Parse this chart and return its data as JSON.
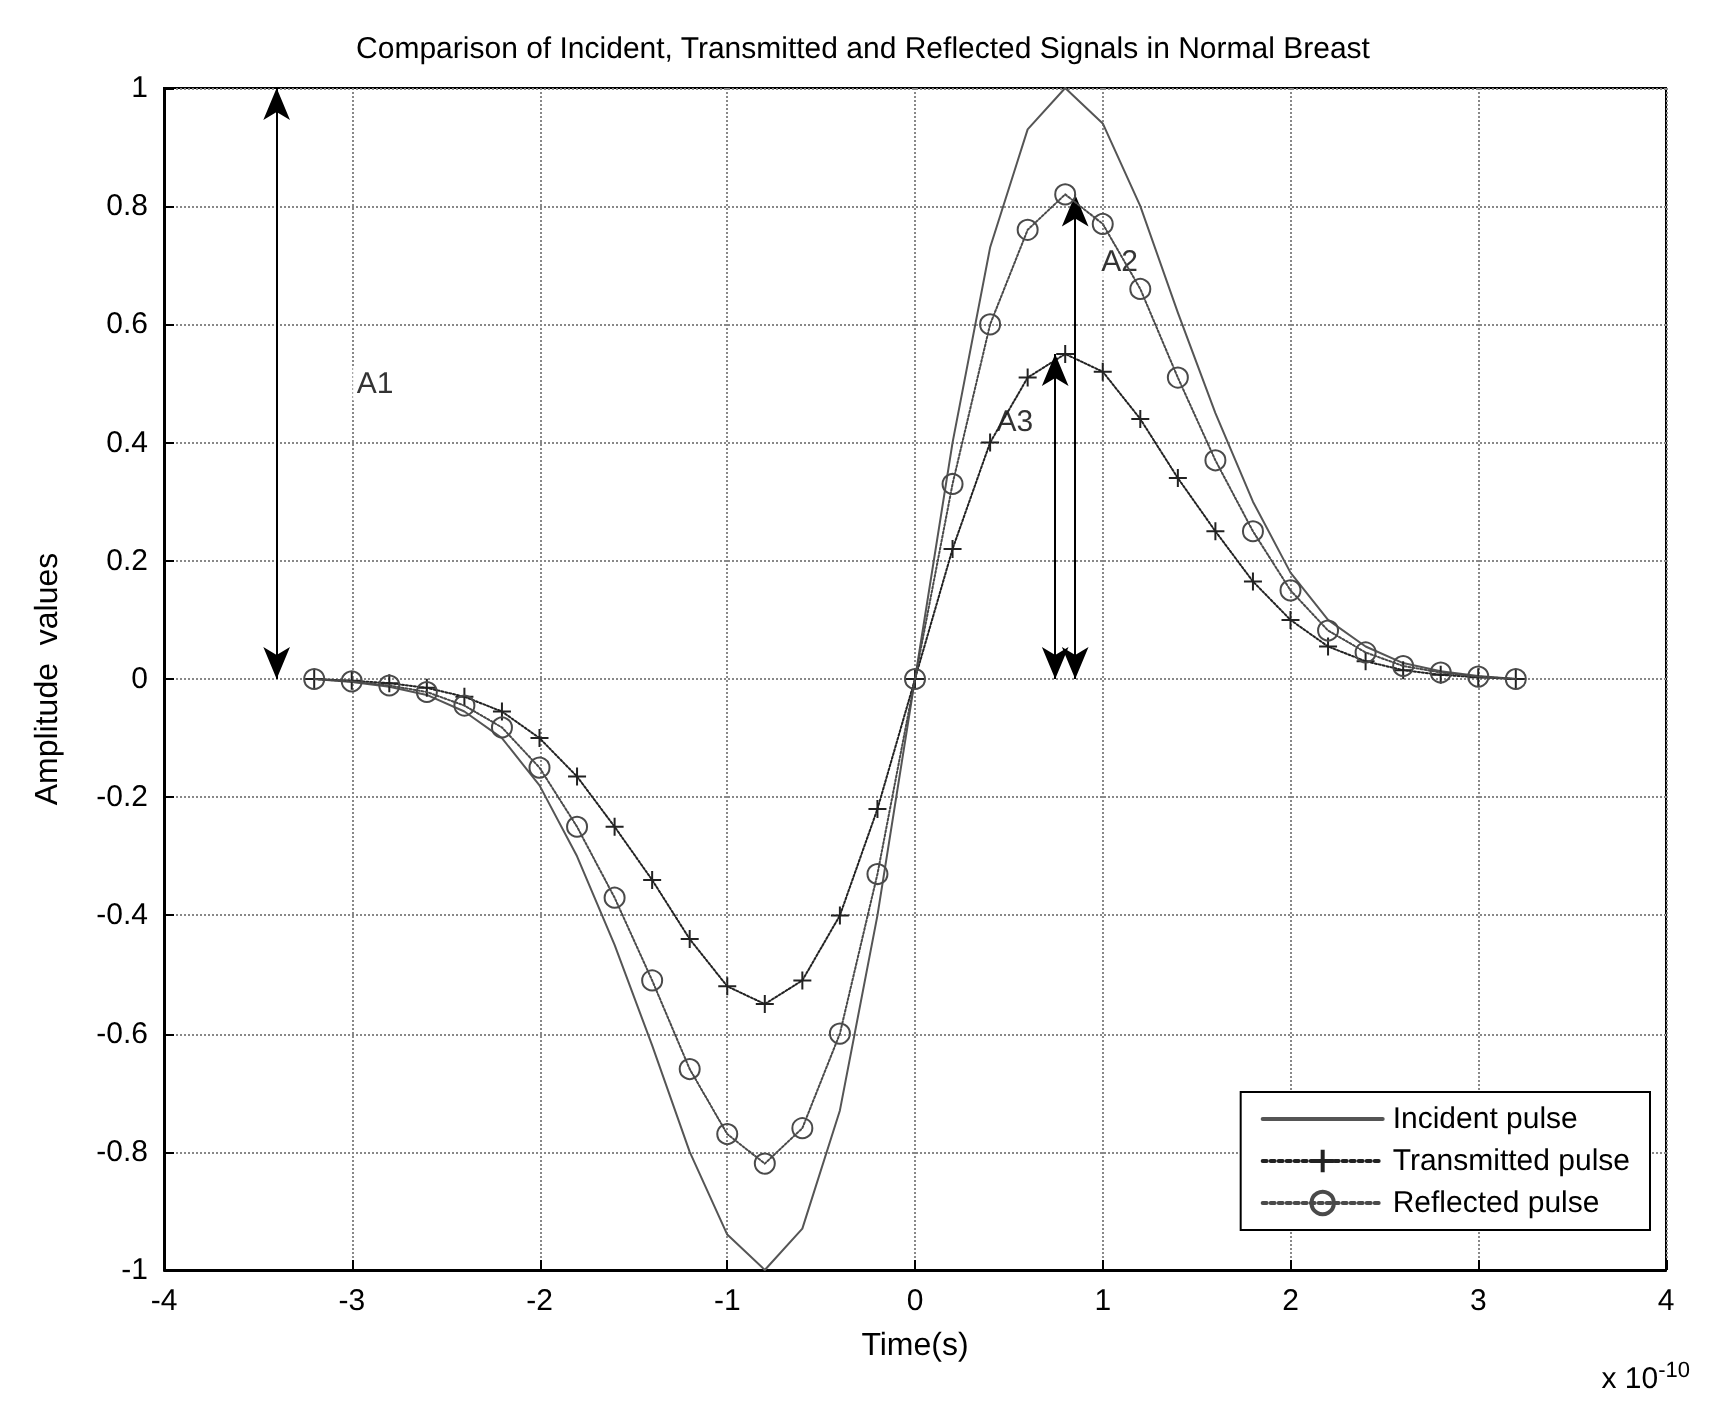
{
  "chart_data": {
    "type": "line",
    "title": "Comparison of Incident, Transmitted and Reflected Signals in Normal Breast",
    "xlabel": "Time(s)",
    "ylabel": "Amplitude  values",
    "x": [
      -3.2,
      -3.0,
      -2.8,
      -2.6,
      -2.4,
      -2.2,
      -2.0,
      -1.8,
      -1.6,
      -1.4,
      -1.2,
      -1.0,
      -0.8,
      -0.6,
      -0.4,
      -0.2,
      0,
      0.2,
      0.4,
      0.6,
      0.8,
      1.0,
      1.2,
      1.4,
      1.6,
      1.8,
      2.0,
      2.2,
      2.4,
      2.6,
      2.8,
      3.0,
      3.2
    ],
    "series": [
      {
        "name": "Incident pulse",
        "color": "#555555",
        "marker": "none",
        "line_style": "solid",
        "values": [
          0,
          -0.005,
          -0.013,
          -0.027,
          -0.055,
          -0.1,
          -0.18,
          -0.3,
          -0.45,
          -0.62,
          -0.8,
          -0.94,
          -1,
          -0.93,
          -0.73,
          -0.4,
          0,
          0.4,
          0.73,
          0.93,
          1,
          0.94,
          0.8,
          0.62,
          0.45,
          0.3,
          0.18,
          0.1,
          0.055,
          0.027,
          0.013,
          0.005,
          0
        ]
      },
      {
        "name": "Transmitted pulse",
        "color": "#222222",
        "marker": "cross",
        "line_style": "dotted",
        "values": [
          0,
          -0.003,
          -0.007,
          -0.015,
          -0.03,
          -0.055,
          -0.1,
          -0.165,
          -0.25,
          -0.34,
          -0.44,
          -0.52,
          -0.55,
          -0.51,
          -0.4,
          -0.22,
          0,
          0.22,
          0.4,
          0.51,
          0.55,
          0.52,
          0.44,
          0.34,
          0.25,
          0.165,
          0.1,
          0.055,
          0.03,
          0.015,
          0.007,
          0.003,
          0
        ]
      },
      {
        "name": "Reflected pulse",
        "color": "#4a4a4a",
        "marker": "circle",
        "line_style": "dotted",
        "values": [
          0,
          -0.004,
          -0.011,
          -0.022,
          -0.045,
          -0.082,
          -0.15,
          -0.25,
          -0.37,
          -0.51,
          -0.66,
          -0.77,
          -0.82,
          -0.76,
          -0.6,
          -0.33,
          0,
          0.33,
          0.6,
          0.76,
          0.82,
          0.77,
          0.66,
          0.51,
          0.37,
          0.25,
          0.15,
          0.082,
          0.045,
          0.022,
          0.011,
          0.004,
          0
        ]
      }
    ],
    "annotations": [
      "A1",
      {
        "text": "A2",
        "x": 0.8,
        "y": 0.82
      },
      {
        "text": "A3",
        "x": 0.8,
        "y": 0.55
      },
      "x 10$^{-10}$"
    ],
    "xlim": [
      -4,
      4
    ],
    "xticks": [
      -4,
      -3,
      -2,
      -1,
      0,
      1,
      2,
      3,
      4
    ],
    "ylim": [
      -1,
      1
    ],
    "yticks": [
      -1,
      -0.8,
      -0.6,
      -0.4,
      -0.2,
      0,
      0.2,
      0.4,
      0.6,
      0.8,
      1
    ],
    "grid": true,
    "legend": "bottom right"
  }
}
